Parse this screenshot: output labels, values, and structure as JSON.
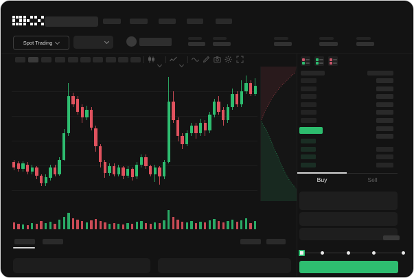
{
  "app": {
    "name": "OKX",
    "logo_glyphs": [
      "O",
      "K",
      "X"
    ]
  },
  "colors": {
    "window_bg": "#131313",
    "green": "#2ebd70",
    "red": "#e0525e",
    "price_row_green": "#2dbd6e",
    "buy_button": "#2ebd70",
    "placeholder": "#2a2a2a",
    "bid_row_tint": "#1a2e24",
    "active_tab_underline": "#d6d6d6",
    "grid": "#1d1d1d"
  },
  "header": {
    "nav_placeholder_count": 5,
    "search": {
      "placeholder": ""
    }
  },
  "market_bar": {
    "mode_selector": {
      "label": "Spot Trading",
      "icon": "chevron-down-icon"
    },
    "pair_selector": {
      "icon": "chevron-down-icon"
    },
    "coin_icon": "coin-icon",
    "stat_placeholder_count": 5
  },
  "chart_toolbar": {
    "timeframe_button_count": 10,
    "active_timeframe_index": 1,
    "icons": [
      "candle-type-icon",
      "chevron-down-icon",
      "indicators-icon",
      "chevron-down-icon",
      "line-style-icon",
      "draw-icon",
      "camera-icon",
      "settings-icon",
      "fullscreen-icon"
    ]
  },
  "chart_data": {
    "type": "candlestick",
    "note": "values estimated from pixels, normalized 0-100 of visible price range",
    "ylim": [
      0,
      100
    ],
    "grid": "horizontal",
    "candles": [
      [
        30,
        26,
        24,
        32
      ],
      [
        29,
        25,
        23,
        31
      ],
      [
        25,
        29,
        23,
        31
      ],
      [
        28,
        23,
        21,
        30
      ],
      [
        23,
        26,
        21,
        28
      ],
      [
        26,
        20,
        17,
        27
      ],
      [
        20,
        14,
        12,
        21
      ],
      [
        14,
        19,
        12,
        21
      ],
      [
        18,
        26,
        16,
        28
      ],
      [
        26,
        21,
        19,
        28
      ],
      [
        21,
        32,
        20,
        34
      ],
      [
        32,
        52,
        31,
        55
      ],
      [
        52,
        80,
        50,
        90
      ],
      [
        80,
        74,
        72,
        83
      ],
      [
        78,
        68,
        66,
        80
      ],
      [
        72,
        64,
        60,
        74
      ],
      [
        64,
        70,
        62,
        73
      ],
      [
        70,
        56,
        54,
        72
      ],
      [
        56,
        42,
        38,
        58
      ],
      [
        42,
        30,
        26,
        44
      ],
      [
        30,
        22,
        18,
        32
      ],
      [
        22,
        27,
        20,
        29
      ],
      [
        27,
        21,
        19,
        29
      ],
      [
        21,
        26,
        19,
        28
      ],
      [
        26,
        20,
        17,
        27
      ],
      [
        20,
        25,
        18,
        27
      ],
      [
        25,
        19,
        16,
        26
      ],
      [
        19,
        28,
        17,
        30
      ],
      [
        28,
        34,
        26,
        36
      ],
      [
        34,
        27,
        25,
        36
      ],
      [
        27,
        21,
        19,
        28
      ],
      [
        21,
        26,
        15,
        28
      ],
      [
        26,
        19,
        13,
        27
      ],
      [
        19,
        30,
        17,
        32
      ],
      [
        30,
        76,
        29,
        95
      ],
      [
        76,
        62,
        60,
        84
      ],
      [
        62,
        50,
        46,
        64
      ],
      [
        50,
        44,
        40,
        52
      ],
      [
        44,
        52,
        42,
        54
      ],
      [
        52,
        58,
        50,
        60
      ],
      [
        58,
        52,
        48,
        60
      ],
      [
        52,
        60,
        50,
        63
      ],
      [
        60,
        54,
        50,
        62
      ],
      [
        54,
        66,
        52,
        68
      ],
      [
        66,
        76,
        64,
        78
      ],
      [
        76,
        68,
        66,
        80
      ],
      [
        70,
        62,
        58,
        72
      ],
      [
        62,
        72,
        60,
        74
      ],
      [
        72,
        82,
        70,
        86
      ],
      [
        82,
        74,
        72,
        84
      ],
      [
        74,
        84,
        72,
        92
      ],
      [
        84,
        90,
        82,
        96
      ],
      [
        90,
        82,
        80,
        92
      ],
      [
        82,
        88,
        80,
        94
      ]
    ],
    "volumes": [
      10,
      8,
      7,
      6,
      9,
      8,
      12,
      9,
      11,
      8,
      14,
      18,
      24,
      16,
      14,
      12,
      10,
      13,
      15,
      12,
      10,
      8,
      9,
      8,
      7,
      9,
      8,
      11,
      12,
      9,
      8,
      10,
      9,
      13,
      28,
      18,
      14,
      11,
      10,
      12,
      9,
      11,
      10,
      13,
      15,
      12,
      10,
      12,
      14,
      11,
      13,
      16,
      9,
      12
    ]
  },
  "depth_chart": {
    "orientation": "vertical",
    "asks_points": [
      [
        1,
        78
      ],
      [
        3,
        72
      ],
      [
        5,
        67
      ],
      [
        8,
        61
      ],
      [
        11,
        56
      ],
      [
        13,
        51
      ],
      [
        17,
        45
      ],
      [
        21,
        39
      ],
      [
        25,
        34
      ],
      [
        29,
        29
      ],
      [
        33,
        25
      ],
      [
        37,
        21
      ],
      [
        41,
        17
      ],
      [
        45,
        13
      ],
      [
        50,
        9
      ]
    ],
    "bids_points": [
      [
        1,
        80
      ],
      [
        4,
        86
      ],
      [
        7,
        91
      ],
      [
        10,
        97
      ],
      [
        13,
        104
      ],
      [
        16,
        111
      ],
      [
        19,
        119
      ],
      [
        23,
        127
      ],
      [
        26,
        134
      ],
      [
        29,
        141
      ],
      [
        32,
        148
      ],
      [
        35,
        154
      ],
      [
        39,
        161
      ],
      [
        43,
        168
      ],
      [
        47,
        173
      ],
      [
        50,
        176
      ]
    ]
  },
  "orderbook": {
    "view_icons": [
      "book-combined-icon",
      "book-bids-icon",
      "book-asks-icon"
    ],
    "ask_row_count": 6,
    "right_col_row_count": 8,
    "bid_row_count": 4,
    "bid_right_row_count": 3
  },
  "trade_panel": {
    "tabs": {
      "buy": "Buy",
      "sell": "Sell",
      "active": "buy"
    },
    "field_placeholder_count": 3,
    "slider": {
      "stop_count": 5,
      "active_stop_index": 0
    },
    "submit_button": {
      "color": "#2ebd70",
      "label": ""
    }
  },
  "bottom_bar": {
    "left_tab_count": 2,
    "active_left_tab_index": 0,
    "right_tab_count": 2,
    "panel_count": 2
  }
}
